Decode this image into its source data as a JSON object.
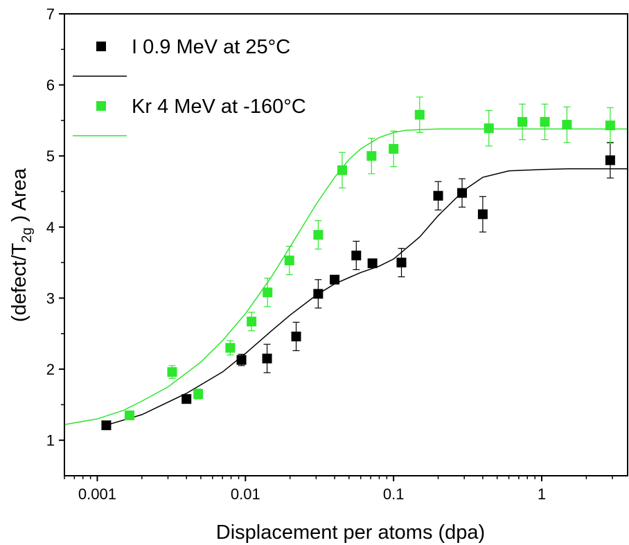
{
  "chart_data": {
    "type": "scatter",
    "xlabel": "Displacement per atoms (dpa)",
    "ylabel": {
      "prefix": "(defect/T",
      "sub": "2g",
      "suffix": " ) Area"
    },
    "xscale": "log",
    "xlim": [
      0.0006,
      3.8
    ],
    "ylim": [
      0.5,
      7
    ],
    "xticks": [
      0.001,
      0.01,
      0.1,
      1
    ],
    "xtick_labels": [
      "0.001",
      "0.01",
      "0.1",
      "1"
    ],
    "yticks": [
      1,
      2,
      3,
      4,
      5,
      6,
      7
    ],
    "ytick_labels": [
      "1",
      "2",
      "3",
      "4",
      "5",
      "6",
      "7"
    ],
    "grid": false,
    "legend_position": "top-left",
    "series": [
      {
        "name": "I 0.9 MeV at 25°C",
        "color": "#000000",
        "marker": "square",
        "points": [
          {
            "x": 0.00115,
            "y": 1.21,
            "err": 0.0
          },
          {
            "x": 0.004,
            "y": 1.58,
            "err": 0.0
          },
          {
            "x": 0.0094,
            "y": 2.13,
            "err": 0.08
          },
          {
            "x": 0.014,
            "y": 2.15,
            "err": 0.2
          },
          {
            "x": 0.022,
            "y": 2.46,
            "err": 0.2
          },
          {
            "x": 0.031,
            "y": 3.06,
            "err": 0.2
          },
          {
            "x": 0.04,
            "y": 3.26,
            "err": 0.0
          },
          {
            "x": 0.056,
            "y": 3.6,
            "err": 0.2
          },
          {
            "x": 0.072,
            "y": 3.49,
            "err": 0.0
          },
          {
            "x": 0.113,
            "y": 3.5,
            "err": 0.2
          },
          {
            "x": 0.2,
            "y": 4.44,
            "err": 0.2
          },
          {
            "x": 0.29,
            "y": 4.48,
            "err": 0.2
          },
          {
            "x": 0.4,
            "y": 4.18,
            "err": 0.25
          },
          {
            "x": 2.9,
            "y": 4.94,
            "err": 0.25
          }
        ],
        "fit": {
          "x": [
            0.0011,
            0.002,
            0.004,
            0.007,
            0.01,
            0.015,
            0.02,
            0.03,
            0.04,
            0.06,
            0.08,
            0.1,
            0.15,
            0.2,
            0.3,
            0.4,
            0.6,
            1.0,
            1.5,
            3.8
          ],
          "y": [
            1.2,
            1.36,
            1.66,
            1.96,
            2.22,
            2.54,
            2.76,
            3.04,
            3.2,
            3.36,
            3.45,
            3.55,
            3.86,
            4.16,
            4.52,
            4.7,
            4.79,
            4.81,
            4.82,
            4.82
          ]
        }
      },
      {
        "name": "Kr 4 MeV at -160°C",
        "color": "#2ee62e",
        "marker": "square",
        "points": [
          {
            "x": 0.00165,
            "y": 1.35,
            "err": 0.0
          },
          {
            "x": 0.0032,
            "y": 1.96,
            "err": 0.09
          },
          {
            "x": 0.0048,
            "y": 1.65,
            "err": 0.07
          },
          {
            "x": 0.0079,
            "y": 2.3,
            "err": 0.1
          },
          {
            "x": 0.011,
            "y": 2.67,
            "err": 0.13
          },
          {
            "x": 0.0141,
            "y": 3.08,
            "err": 0.2
          },
          {
            "x": 0.0198,
            "y": 3.53,
            "err": 0.2
          },
          {
            "x": 0.031,
            "y": 3.89,
            "err": 0.2
          },
          {
            "x": 0.045,
            "y": 4.8,
            "err": 0.25
          },
          {
            "x": 0.071,
            "y": 5.0,
            "err": 0.25
          },
          {
            "x": 0.1,
            "y": 5.1,
            "err": 0.25
          },
          {
            "x": 0.15,
            "y": 5.58,
            "err": 0.25
          },
          {
            "x": 0.44,
            "y": 5.39,
            "err": 0.25
          },
          {
            "x": 0.74,
            "y": 5.48,
            "err": 0.25
          },
          {
            "x": 1.05,
            "y": 5.48,
            "err": 0.25
          },
          {
            "x": 1.48,
            "y": 5.44,
            "err": 0.25
          },
          {
            "x": 2.9,
            "y": 5.43,
            "err": 0.25
          }
        ],
        "fit": {
          "x": [
            0.0006,
            0.001,
            0.0015,
            0.002,
            0.003,
            0.005,
            0.007,
            0.01,
            0.015,
            0.02,
            0.025,
            0.03,
            0.04,
            0.05,
            0.06,
            0.08,
            0.1,
            0.12,
            0.15,
            0.2,
            0.3,
            1.0,
            3.8
          ],
          "y": [
            1.22,
            1.3,
            1.42,
            1.55,
            1.75,
            2.1,
            2.4,
            2.78,
            3.3,
            3.72,
            4.05,
            4.32,
            4.7,
            4.95,
            5.1,
            5.26,
            5.33,
            5.36,
            5.37,
            5.38,
            5.38,
            5.38,
            5.38
          ]
        }
      }
    ]
  }
}
